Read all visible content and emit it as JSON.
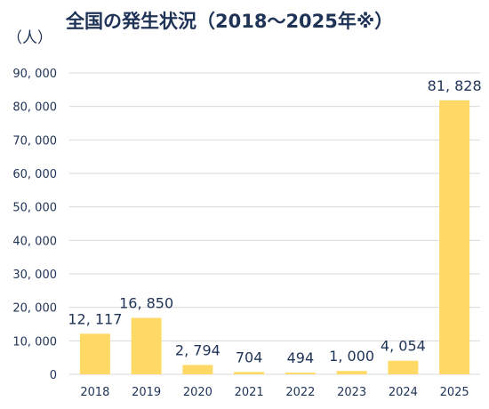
{
  "chart_data": {
    "type": "bar",
    "title": "全国の発生状況（2018〜2025年※）",
    "ylabel": "（人）",
    "xlabel": "",
    "categories": [
      "2018",
      "2019",
      "2020",
      "2021",
      "2022",
      "2023",
      "2024",
      "2025"
    ],
    "values": [
      12117,
      16850,
      2794,
      704,
      494,
      1000,
      4054,
      81828
    ],
    "data_labels": [
      "12, 117",
      "16, 850",
      "2, 794",
      "704",
      "494",
      "1, 000",
      "4, 054",
      "81, 828"
    ],
    "y_ticks": [
      0,
      10000,
      20000,
      30000,
      40000,
      50000,
      60000,
      70000,
      80000,
      90000
    ],
    "y_tick_labels": [
      "0",
      "10, 000",
      "20, 000",
      "30, 000",
      "40, 000",
      "50, 000",
      "60, 000",
      "70, 000",
      "80, 000",
      "90, 000"
    ],
    "ylim": [
      0,
      90000
    ],
    "grid": true,
    "legend": "none",
    "colors": {
      "bar": "#ffd966",
      "grid": "#d9d9d9",
      "text": "#1f3356"
    }
  }
}
